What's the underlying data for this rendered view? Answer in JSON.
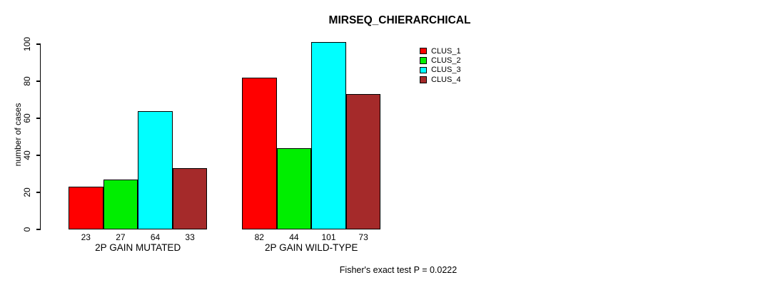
{
  "title": "MIRSEQ_CHIERARCHICAL",
  "subtitle": "Fisher's exact test P = 0.0222",
  "chart_data": {
    "type": "bar",
    "grouped": true,
    "title": "MIRSEQ_CHIERARCHICAL",
    "xlabel": "",
    "ylabel": "number of cases",
    "ylim": [
      0,
      100
    ],
    "yticks": [
      0,
      20,
      40,
      60,
      80,
      100
    ],
    "categories": [
      "2P GAIN MUTATED",
      "2P GAIN WILD-TYPE"
    ],
    "series": [
      {
        "name": "CLUS_1",
        "color": "#ff0000",
        "values": [
          23,
          82
        ]
      },
      {
        "name": "CLUS_2",
        "color": "#00ee00",
        "values": [
          27,
          44
        ]
      },
      {
        "name": "CLUS_3",
        "color": "#00ffff",
        "values": [
          64,
          101
        ]
      },
      {
        "name": "CLUS_4",
        "color": "#a52a2a",
        "values": [
          33,
          73
        ]
      }
    ],
    "bar_value_labels": [
      [
        23,
        27,
        64,
        33
      ],
      [
        82,
        44,
        101,
        73
      ]
    ],
    "legend_position": "top-right",
    "legend_border": false,
    "grid": false,
    "annotation": "Fisher's exact test P = 0.0222",
    "colors": {
      "axis": "#000000",
      "text": "#000000",
      "background": "#ffffff",
      "bar_border": "#000000"
    }
  }
}
